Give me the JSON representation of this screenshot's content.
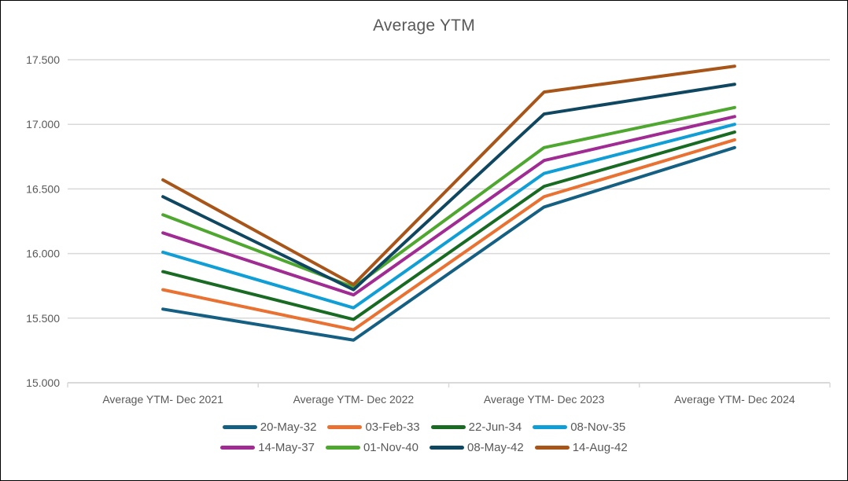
{
  "window": {
    "background": "#FFFFFF",
    "border_color": "#000000"
  },
  "chart_data": {
    "type": "line",
    "title": "Average YTM",
    "xlabel": "",
    "ylabel": "",
    "categories": [
      "Average YTM- Dec 2021",
      "Average YTM- Dec 2022",
      "Average YTM- Dec 2023",
      "Average YTM- Dec 2024"
    ],
    "ylim": [
      15.0,
      17.5
    ],
    "y_ticks": [
      {
        "value": 17.5,
        "label": "17.500"
      },
      {
        "value": 17.0,
        "label": "17.000"
      },
      {
        "value": 16.5,
        "label": "16.500"
      },
      {
        "value": 16.0,
        "label": "16.000"
      },
      {
        "value": 15.5,
        "label": "15.500"
      },
      {
        "value": 15.0,
        "label": "15.000"
      }
    ],
    "grid": true,
    "legend_position": "bottom",
    "legend_rows": [
      [
        "20-May-32",
        "03-Feb-33",
        "22-Jun-34",
        "08-Nov-35"
      ],
      [
        "14-May-37",
        "01-Nov-40",
        "08-May-42",
        "14-Aug-42"
      ]
    ],
    "series": [
      {
        "name": "20-May-32",
        "color": "#156082",
        "values": [
          15.57,
          15.33,
          16.36,
          16.82
        ]
      },
      {
        "name": "03-Feb-33",
        "color": "#E97132",
        "values": [
          15.72,
          15.41,
          16.44,
          16.88
        ]
      },
      {
        "name": "22-Jun-34",
        "color": "#196B24",
        "values": [
          15.86,
          15.49,
          16.52,
          16.94
        ]
      },
      {
        "name": "08-Nov-35",
        "color": "#0F9ED5",
        "values": [
          16.01,
          15.58,
          16.62,
          17.0
        ]
      },
      {
        "name": "14-May-37",
        "color": "#A02B93",
        "values": [
          16.16,
          15.68,
          16.72,
          17.06
        ]
      },
      {
        "name": "01-Nov-40",
        "color": "#4EA72E",
        "values": [
          16.3,
          15.74,
          16.82,
          17.13
        ]
      },
      {
        "name": "08-May-42",
        "color": "#0F4761",
        "values": [
          16.44,
          15.72,
          17.08,
          17.31
        ]
      },
      {
        "name": "14-Aug-42",
        "color": "#A8551A",
        "values": [
          16.57,
          15.76,
          17.25,
          17.45
        ]
      }
    ],
    "style": {
      "text_color": "#595959",
      "grid_color": "#D9D9D9",
      "axis_color": "#D9D9D9",
      "line_width": 4
    }
  }
}
